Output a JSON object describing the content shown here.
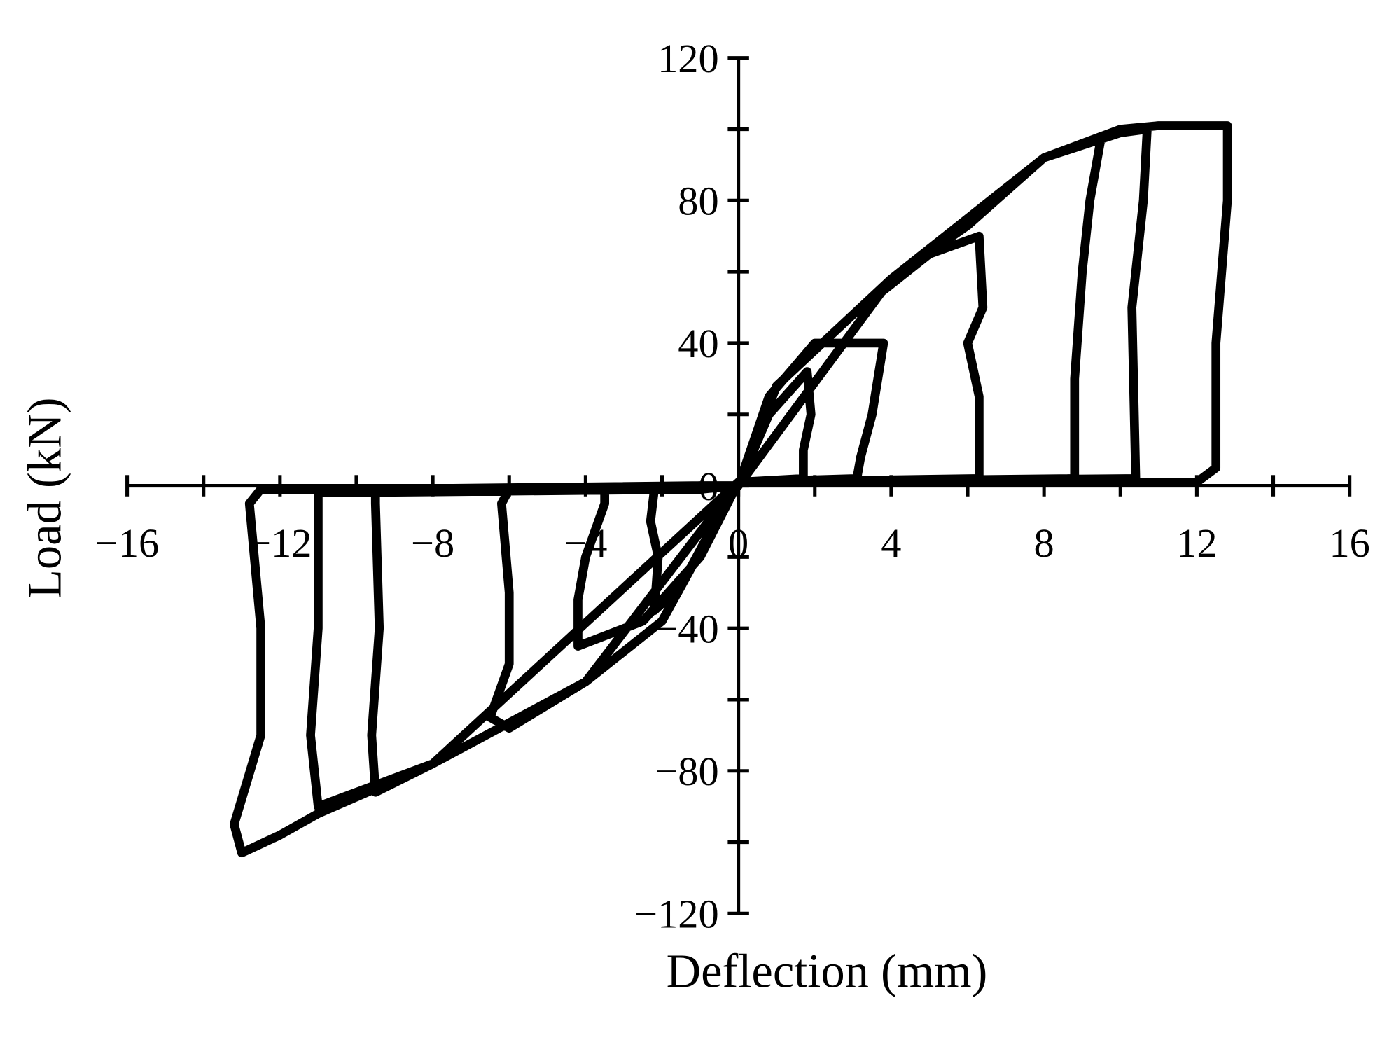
{
  "chart_data": {
    "type": "line",
    "x_label": "Deflection (mm)",
    "y_label": "Load (kN)",
    "xlim": [
      -16,
      16
    ],
    "ylim": [
      -120,
      120
    ],
    "xticks": [
      {
        "value": -16,
        "label": "−16"
      },
      {
        "value": -12,
        "label": "−12"
      },
      {
        "value": -8,
        "label": "−8"
      },
      {
        "value": -4,
        "label": "−4"
      },
      0,
      4,
      8,
      12,
      16
    ],
    "xminorticks": [
      -14,
      -10,
      -6,
      -2,
      2,
      6,
      10,
      14
    ],
    "yticks": [
      {
        "value": -120,
        "label": "−120"
      },
      {
        "value": -80,
        "label": "−80"
      },
      {
        "value": -40,
        "label": "−40"
      },
      0,
      40,
      80,
      120
    ],
    "yminorticks": [
      -100,
      -60,
      -20,
      20,
      60,
      100
    ],
    "series": [
      {
        "color": "#000000",
        "x": [
          0,
          0.8,
          1.8,
          1.9,
          1.7,
          1.7,
          0,
          -0.5,
          -1.5,
          -2.2,
          -2.1,
          -2.3,
          -2.2,
          -1,
          0,
          0.8,
          2,
          3.8,
          3.5,
          3.2,
          3.1,
          0,
          -1,
          -2.5,
          -4.2,
          -4.2,
          -4,
          -3.5,
          -3.5,
          -1,
          0,
          1,
          3,
          5,
          6.3,
          6.4,
          6,
          6.3,
          6.3,
          0,
          -2,
          -4,
          -6,
          -6.5,
          -6,
          -6,
          -6.2,
          -6,
          -1,
          0,
          1,
          4,
          6,
          8,
          9.5,
          9.2,
          9,
          8.8,
          8.8,
          0,
          -4,
          -8,
          -9.5,
          -9.6,
          -9.4,
          -9.5,
          -9.5,
          -1,
          0,
          4,
          8,
          10,
          10.7,
          10.6,
          10.3,
          10.4,
          0,
          -8,
          -10.5,
          -11,
          -11.2,
          -11,
          -11,
          -1,
          0,
          4,
          8,
          10,
          11,
          12.8,
          12.8,
          12.5,
          12.5,
          12,
          11,
          0,
          -8,
          -11,
          -12,
          -13,
          -13.2,
          -12.5,
          -12.5,
          -12.8,
          -12.5,
          -1
        ],
        "y": [
          0,
          20,
          32,
          20,
          10,
          2,
          1,
          -8,
          -28,
          -35,
          -20,
          -10,
          -1,
          0,
          0,
          25,
          40,
          40,
          20,
          8,
          2,
          1,
          -20,
          -38,
          -45,
          -32,
          -20,
          -5,
          -1,
          0,
          0,
          28,
          48,
          65,
          70,
          50,
          40,
          25,
          2,
          1,
          -38,
          -55,
          -68,
          -65,
          -50,
          -30,
          -5,
          -1,
          0,
          0,
          28,
          58,
          73,
          92,
          98,
          80,
          60,
          30,
          2,
          1,
          -55,
          -78,
          -86,
          -70,
          -40,
          -5,
          -1,
          0,
          0,
          58,
          92,
          99,
          100,
          80,
          50,
          2,
          1,
          -78,
          -88,
          -90,
          -70,
          -40,
          -2,
          -1,
          0,
          58,
          92,
          100,
          101,
          101,
          80,
          40,
          5,
          1,
          1,
          1,
          -78,
          -92,
          -98,
          -103,
          -95,
          -70,
          -40,
          -5,
          -1,
          -1
        ]
      }
    ]
  }
}
